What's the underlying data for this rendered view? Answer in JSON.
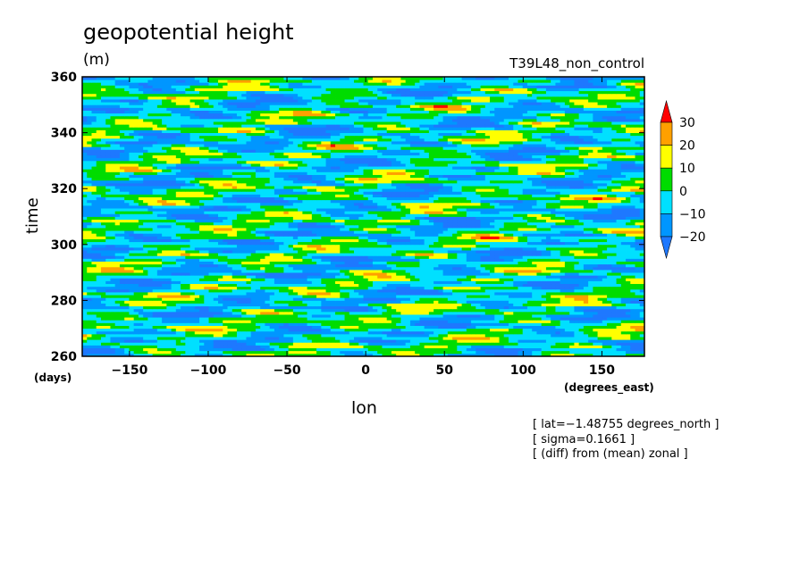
{
  "chart_data": {
    "type": "heatmap",
    "title": "geopotential height",
    "units": "(m)",
    "experiment": "T39L48_non_control",
    "xlabel": "lon",
    "x_units": "(degrees_east)",
    "ylabel": "time",
    "y_units": "(days)",
    "xlim": [
      -180,
      177
    ],
    "ylim": [
      260,
      360
    ],
    "x_ticks": [
      -150,
      -100,
      -50,
      0,
      50,
      100,
      150
    ],
    "x_tick_labels": [
      "−150",
      "−100",
      "−50",
      "0",
      "50",
      "100",
      "150"
    ],
    "y_ticks": [
      260,
      280,
      300,
      320,
      340,
      360
    ],
    "y_tick_labels": [
      "260",
      "280",
      "300",
      "320",
      "340",
      "360"
    ],
    "colorbar": {
      "levels": [
        -20,
        -10,
        0,
        10,
        20,
        30
      ],
      "level_labels": [
        "−20",
        "−10",
        "0",
        "10",
        "20",
        "30"
      ],
      "colors": [
        "#1e78ff",
        "#0096ff",
        "#00e0ff",
        "#00dc00",
        "#ffff00",
        "#ffa000",
        "#ff0000"
      ]
    },
    "notes": [
      "[ lat=−1.48755 degrees_north ]",
      "[ sigma=0.1661 ]",
      "[ (diff) from (mean) zonal ]"
    ]
  }
}
